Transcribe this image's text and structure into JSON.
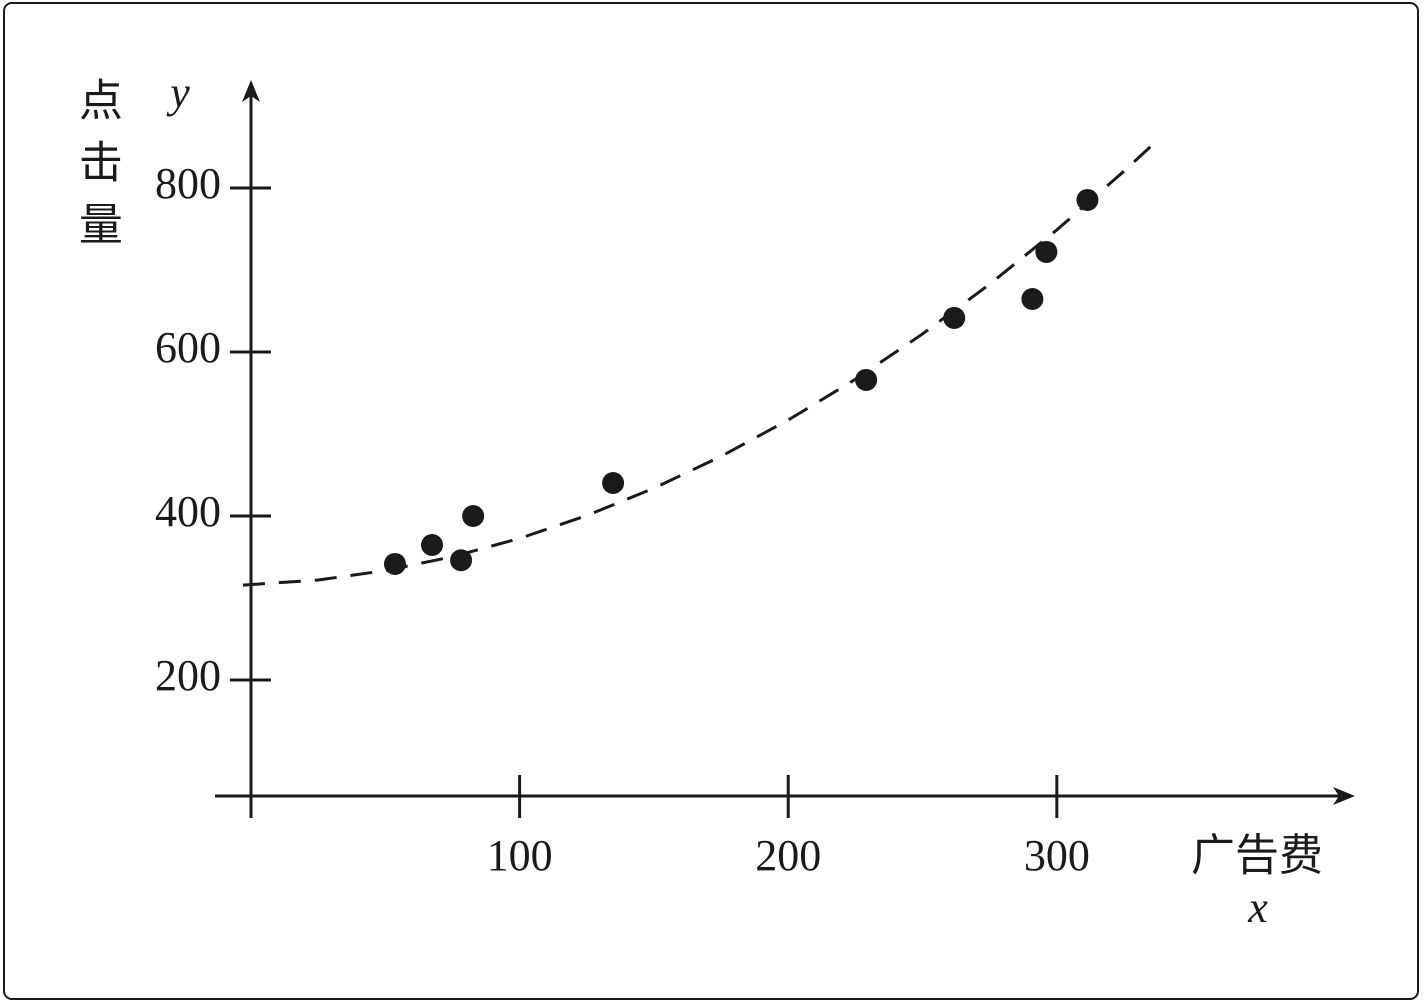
{
  "chart_data": {
    "type": "scatter",
    "x_label": "广告费",
    "x_symbol": "x",
    "y_label": "点击量",
    "y_symbol": "y",
    "xlim": [
      -13.4,
      411
    ],
    "ylim": [
      58.5,
      931.7
    ],
    "xticks": [
      100,
      200,
      300
    ],
    "yticks": [
      200,
      400,
      600,
      800
    ],
    "color": "#1a1a1a",
    "points": {
      "x": [
        53.6,
        67.4,
        78.2,
        82.7,
        134.8,
        229,
        261.8,
        290.9,
        296.1,
        311.4
      ],
      "y": [
        341.5,
        364.6,
        346,
        400,
        440.2,
        565.9,
        641.5,
        664.6,
        722,
        785.4
      ]
    },
    "curve": {
      "dashed": true,
      "x": [
        -3,
        25,
        50,
        75,
        100,
        125,
        150,
        175,
        200,
        225,
        250,
        275,
        300,
        325,
        336.7
      ],
      "y": [
        315.7,
        321.9,
        333.4,
        350.3,
        372.7,
        400.5,
        433.9,
        472.7,
        517,
        566.7,
        622,
        682.7,
        748.9,
        820.5,
        855.9
      ]
    }
  }
}
